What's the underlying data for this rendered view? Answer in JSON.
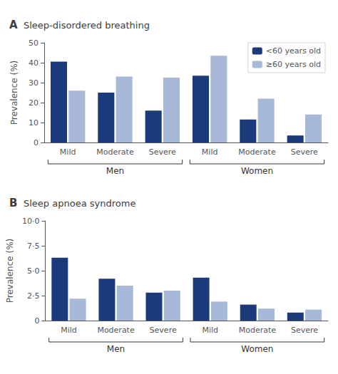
{
  "chart_data": [
    {
      "type": "bar",
      "panel_label": "A",
      "title": "Sleep-disordered breathing",
      "ylabel": "Prevalence (%)",
      "categories": [
        "Mild",
        "Moderate",
        "Severe",
        "Mild",
        "Moderate",
        "Severe"
      ],
      "group_labels": [
        "Men",
        "Women"
      ],
      "series": [
        {
          "name": "<60 years old",
          "color": "#1a3a7a",
          "values": [
            40.5,
            25.0,
            16.0,
            33.5,
            11.5,
            3.5
          ]
        },
        {
          "name": "≥60 years old",
          "color": "#a8b8d8",
          "values": [
            26.0,
            33.0,
            32.5,
            43.5,
            22.0,
            14.0
          ]
        }
      ],
      "ylim": [
        0,
        50
      ],
      "yticks": [
        0,
        10,
        20,
        30,
        40,
        50
      ],
      "grid": false,
      "legend": "upper right"
    },
    {
      "type": "bar",
      "panel_label": "B",
      "title": "Sleep apnoea syndrome",
      "ylabel": "Prevalence (%)",
      "categories": [
        "Mild",
        "Moderate",
        "Severe",
        "Mild",
        "Moderate",
        "Severe"
      ],
      "group_labels": [
        "Men",
        "Women"
      ],
      "series": [
        {
          "color": "#1a3a7a",
          "values": [
            6.3,
            4.2,
            2.8,
            4.3,
            1.6,
            0.8
          ]
        },
        {
          "color": "#a8b8d8",
          "values": [
            2.2,
            3.5,
            3.0,
            1.9,
            1.2,
            1.1
          ]
        }
      ],
      "ylim": [
        0,
        10.0
      ],
      "yticks": [
        0,
        {
          "value": 2.5,
          "label": "2·5"
        },
        {
          "value": 5.0,
          "label": "5·0"
        },
        {
          "value": 7.5,
          "label": "7·5"
        },
        {
          "value": 10.0,
          "label": "10·0"
        }
      ],
      "grid": false
    }
  ]
}
